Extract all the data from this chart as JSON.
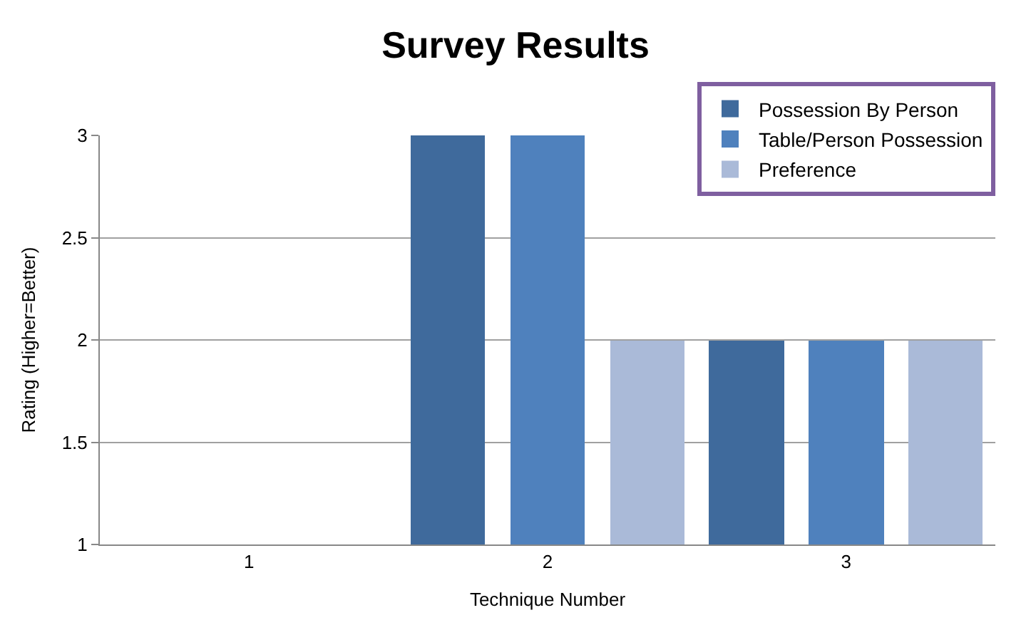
{
  "chart_data": {
    "type": "bar",
    "title": "Survey Results",
    "xlabel": "Technique Number",
    "ylabel": "Rating (Higher=Better)",
    "categories": [
      "1",
      "2",
      "3"
    ],
    "series": [
      {
        "name": "Possession By Person",
        "color": "#3f6a9c",
        "values": [
          null,
          3,
          2
        ]
      },
      {
        "name": "Table/Person Possession",
        "color": "#4f81bd",
        "values": [
          null,
          3,
          2
        ]
      },
      {
        "name": "Preference",
        "color": "#aabad8",
        "values": [
          null,
          2,
          2
        ]
      }
    ],
    "ylim": [
      1,
      3
    ],
    "yticks": [
      1,
      1.5,
      2,
      2.5,
      3
    ],
    "grid": "y",
    "legend": "top right"
  }
}
